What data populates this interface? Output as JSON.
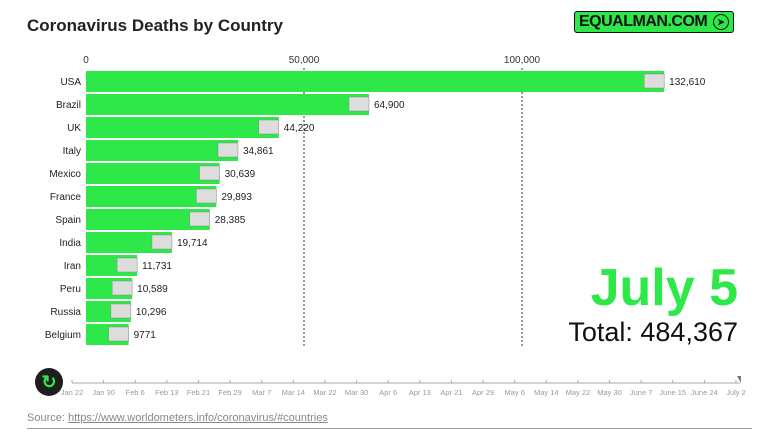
{
  "chart_data": {
    "type": "bar",
    "title": "Coronavirus Deaths by Country",
    "orientation": "horizontal",
    "categories": [
      "USA",
      "Brazil",
      "UK",
      "Italy",
      "Mexico",
      "France",
      "Spain",
      "India",
      "Iran",
      "Peru",
      "Russia",
      "Belgium"
    ],
    "values": [
      132610,
      64900,
      44220,
      34861,
      30639,
      29893,
      28385,
      19714,
      11731,
      10589,
      10296,
      9771
    ],
    "value_labels": [
      "132,610",
      "64,900",
      "44,220",
      "34,861",
      "30,639",
      "29,893",
      "28,385",
      "19,714",
      "11,731",
      "10,589",
      "10,296",
      "9771"
    ],
    "xticks": [
      0,
      50000,
      100000
    ],
    "xtick_labels": [
      "0",
      "50,000",
      "100,000"
    ],
    "xlim": [
      0,
      150000
    ],
    "grid": "vertical dashed",
    "bar_color": "#2ee84a"
  },
  "brand": {
    "logo_text": "EQUALMAN.COM",
    "icon": "pin-icon"
  },
  "date_label": "July 5",
  "total_label": "Total: 484,367",
  "timeline": {
    "ticks": [
      "Jan 22",
      "Jan 30",
      "Feb 6",
      "Feb 13",
      "Feb 21",
      "Feb 29",
      "Mar 7",
      "Mar 14",
      "Mar 22",
      "Mar 30",
      "Apr 6",
      "Apr 13",
      "Apr 21",
      "Apr 29",
      "May 6",
      "May 14",
      "May 22",
      "May 30",
      "June 7",
      "June 15",
      "June 24",
      "July 2"
    ],
    "progress": 1.0
  },
  "replay_icon": "replay-icon",
  "source": {
    "label": "Source:",
    "link": "https://www.worldometers.info/coronavirus/#countries"
  }
}
